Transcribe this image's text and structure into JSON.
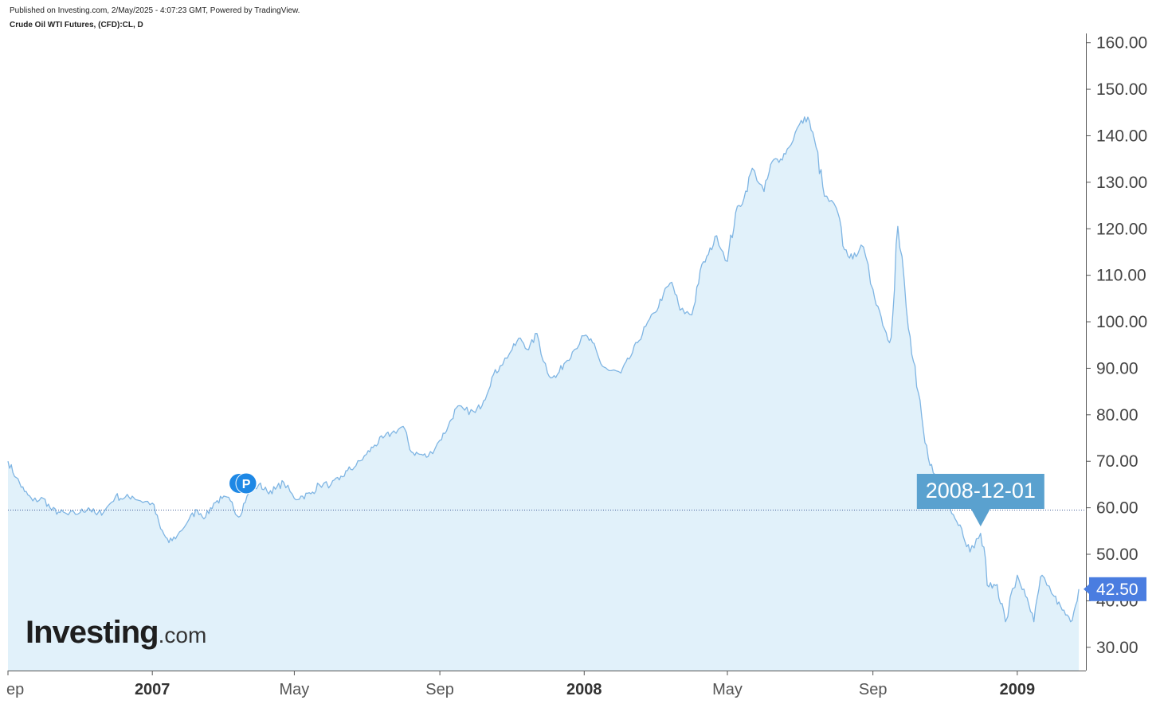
{
  "header": {
    "published": "Published on Investing.com, 2/May/2025 - 4:07:23 GMT, Powered by TradingView.",
    "symbol": "Crude Oil WTI Futures, (CFD):CL, D"
  },
  "logo": {
    "main": "Investing",
    "suffix": ".com"
  },
  "colors": {
    "line": "#7fb5e3",
    "fill": "#e1f1fa",
    "marker": "#5aa1cf",
    "price_tag": "#4a7de0",
    "event_badge": "#1e88e5"
  },
  "event_badge": {
    "letter": "P",
    "date": "2007-03-20"
  },
  "chart_data": {
    "type": "area",
    "title": "",
    "xlabel": "",
    "ylabel": "",
    "ylim": [
      25,
      162
    ],
    "x_range": [
      "2006-09-01",
      "2009-02-28"
    ],
    "y_ticks": [
      "30.00",
      "40.00",
      "50.00",
      "60.00",
      "70.00",
      "80.00",
      "90.00",
      "100.00",
      "110.00",
      "120.00",
      "130.00",
      "140.00",
      "150.00",
      "160.00"
    ],
    "x_ticks": [
      {
        "label": "ep",
        "date": "2006-09-01",
        "year": false
      },
      {
        "label": "2007",
        "date": "2007-01-01",
        "year": true
      },
      {
        "label": "May",
        "date": "2007-05-01",
        "year": false
      },
      {
        "label": "Sep",
        "date": "2007-09-01",
        "year": false
      },
      {
        "label": "2008",
        "date": "2008-01-01",
        "year": true
      },
      {
        "label": "May",
        "date": "2008-05-01",
        "year": false
      },
      {
        "label": "Sep",
        "date": "2008-09-01",
        "year": false
      },
      {
        "label": "2009",
        "date": "2009-01-01",
        "year": true
      }
    ],
    "crosshair": {
      "date": "2008-12-01",
      "label": "2008-12-01",
      "price": 59.5
    },
    "last_price": {
      "value": 42.5,
      "label": "42.50"
    },
    "series": [
      {
        "points": [
          [
            "2006-09-01",
            70.0
          ],
          [
            "2006-09-08",
            66.5
          ],
          [
            "2006-09-15",
            63.5
          ],
          [
            "2006-09-22",
            61.5
          ],
          [
            "2006-10-01",
            62.0
          ],
          [
            "2006-10-08",
            59.5
          ],
          [
            "2006-10-15",
            59.0
          ],
          [
            "2006-10-22",
            58.5
          ],
          [
            "2006-11-01",
            59.0
          ],
          [
            "2006-11-08",
            60.0
          ],
          [
            "2006-11-15",
            58.5
          ],
          [
            "2006-11-22",
            59.5
          ],
          [
            "2006-12-01",
            62.5
          ],
          [
            "2006-12-08",
            62.0
          ],
          [
            "2006-12-15",
            62.5
          ],
          [
            "2006-12-22",
            61.5
          ],
          [
            "2007-01-01",
            61.0
          ],
          [
            "2007-01-08",
            55.5
          ],
          [
            "2007-01-15",
            52.5
          ],
          [
            "2007-01-22",
            54.0
          ],
          [
            "2007-02-01",
            57.5
          ],
          [
            "2007-02-08",
            59.5
          ],
          [
            "2007-02-15",
            58.0
          ],
          [
            "2007-02-22",
            61.0
          ],
          [
            "2007-03-01",
            62.0
          ],
          [
            "2007-03-08",
            61.5
          ],
          [
            "2007-03-15",
            58.0
          ],
          [
            "2007-03-22",
            62.5
          ],
          [
            "2007-04-01",
            65.0
          ],
          [
            "2007-04-08",
            63.5
          ],
          [
            "2007-04-15",
            64.0
          ],
          [
            "2007-04-22",
            65.5
          ],
          [
            "2007-05-01",
            62.0
          ],
          [
            "2007-05-08",
            62.5
          ],
          [
            "2007-05-15",
            63.0
          ],
          [
            "2007-05-22",
            65.0
          ],
          [
            "2007-06-01",
            65.0
          ],
          [
            "2007-06-08",
            66.0
          ],
          [
            "2007-06-15",
            68.0
          ],
          [
            "2007-06-22",
            69.0
          ],
          [
            "2007-07-01",
            71.5
          ],
          [
            "2007-07-08",
            73.5
          ],
          [
            "2007-07-15",
            75.0
          ],
          [
            "2007-07-22",
            76.0
          ],
          [
            "2007-08-01",
            77.5
          ],
          [
            "2007-08-08",
            72.0
          ],
          [
            "2007-08-15",
            71.5
          ],
          [
            "2007-08-22",
            71.0
          ],
          [
            "2007-09-01",
            74.5
          ],
          [
            "2007-09-08",
            77.5
          ],
          [
            "2007-09-15",
            81.5
          ],
          [
            "2007-09-22",
            81.0
          ],
          [
            "2007-10-01",
            80.5
          ],
          [
            "2007-10-08",
            83.0
          ],
          [
            "2007-10-15",
            88.0
          ],
          [
            "2007-10-22",
            90.5
          ],
          [
            "2007-11-01",
            94.0
          ],
          [
            "2007-11-08",
            96.5
          ],
          [
            "2007-11-15",
            94.0
          ],
          [
            "2007-11-22",
            97.5
          ],
          [
            "2007-12-01",
            89.0
          ],
          [
            "2007-12-08",
            88.0
          ],
          [
            "2007-12-15",
            91.0
          ],
          [
            "2007-12-22",
            93.5
          ],
          [
            "2008-01-01",
            97.0
          ],
          [
            "2008-01-08",
            95.5
          ],
          [
            "2008-01-15",
            91.0
          ],
          [
            "2008-01-22",
            89.5
          ],
          [
            "2008-02-01",
            89.0
          ],
          [
            "2008-02-08",
            92.0
          ],
          [
            "2008-02-15",
            95.5
          ],
          [
            "2008-02-22",
            99.0
          ],
          [
            "2008-03-01",
            102.0
          ],
          [
            "2008-03-08",
            106.0
          ],
          [
            "2008-03-15",
            108.5
          ],
          [
            "2008-03-22",
            102.5
          ],
          [
            "2008-04-01",
            101.5
          ],
          [
            "2008-04-08",
            111.0
          ],
          [
            "2008-04-15",
            114.5
          ],
          [
            "2008-04-22",
            118.5
          ],
          [
            "2008-05-01",
            113.0
          ],
          [
            "2008-05-08",
            123.5
          ],
          [
            "2008-05-15",
            126.5
          ],
          [
            "2008-05-22",
            133.0
          ],
          [
            "2008-06-01",
            128.0
          ],
          [
            "2008-06-08",
            134.5
          ],
          [
            "2008-06-15",
            135.0
          ],
          [
            "2008-06-22",
            137.5
          ],
          [
            "2008-07-01",
            142.5
          ],
          [
            "2008-07-08",
            144.0
          ],
          [
            "2008-07-15",
            137.5
          ],
          [
            "2008-07-22",
            127.0
          ],
          [
            "2008-08-01",
            124.5
          ],
          [
            "2008-08-08",
            115.5
          ],
          [
            "2008-08-15",
            113.5
          ],
          [
            "2008-08-22",
            116.5
          ],
          [
            "2008-09-01",
            107.0
          ],
          [
            "2008-09-08",
            101.0
          ],
          [
            "2008-09-15",
            95.5
          ],
          [
            "2008-09-22",
            120.5
          ],
          [
            "2008-10-01",
            98.5
          ],
          [
            "2008-10-08",
            86.0
          ],
          [
            "2008-10-15",
            74.0
          ],
          [
            "2008-10-22",
            67.5
          ],
          [
            "2008-11-01",
            64.0
          ],
          [
            "2008-11-08",
            58.5
          ],
          [
            "2008-11-15",
            55.5
          ],
          [
            "2008-11-22",
            50.5
          ],
          [
            "2008-12-01",
            54.5
          ],
          [
            "2008-12-08",
            43.0
          ],
          [
            "2008-12-15",
            43.5
          ],
          [
            "2008-12-22",
            35.5
          ],
          [
            "2009-01-01",
            45.5
          ],
          [
            "2009-01-08",
            41.0
          ],
          [
            "2009-01-15",
            35.5
          ],
          [
            "2009-01-22",
            45.5
          ],
          [
            "2009-02-01",
            41.0
          ],
          [
            "2009-02-08",
            38.0
          ],
          [
            "2009-02-15",
            35.5
          ],
          [
            "2009-02-22",
            42.5
          ]
        ]
      }
    ]
  }
}
